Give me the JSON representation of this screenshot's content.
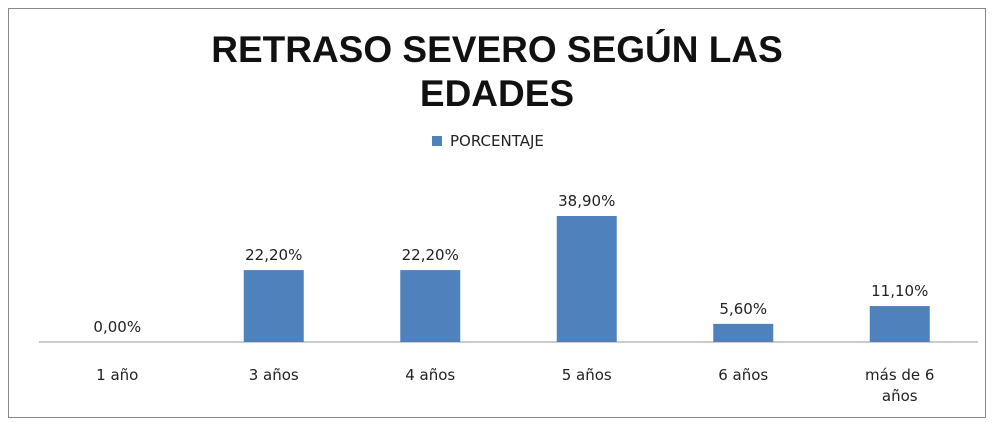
{
  "chart_data": {
    "type": "bar",
    "title": "RETRASO SEVERO SEGÚN LAS EDADES",
    "categories": [
      "1 año",
      "3 años",
      "4 años",
      "5 años",
      "6 años",
      "más de 6 años"
    ],
    "series": [
      {
        "name": "PORCENTAJE",
        "color": "#4f81bd",
        "values": [
          0,
          22.2,
          22.2,
          38.9,
          5.6,
          11.1
        ],
        "value_labels": [
          "0,00%",
          "22,20%",
          "22,20%",
          "38,90%",
          "5,60%",
          "11,10%"
        ]
      }
    ],
    "legend": "top"
  }
}
